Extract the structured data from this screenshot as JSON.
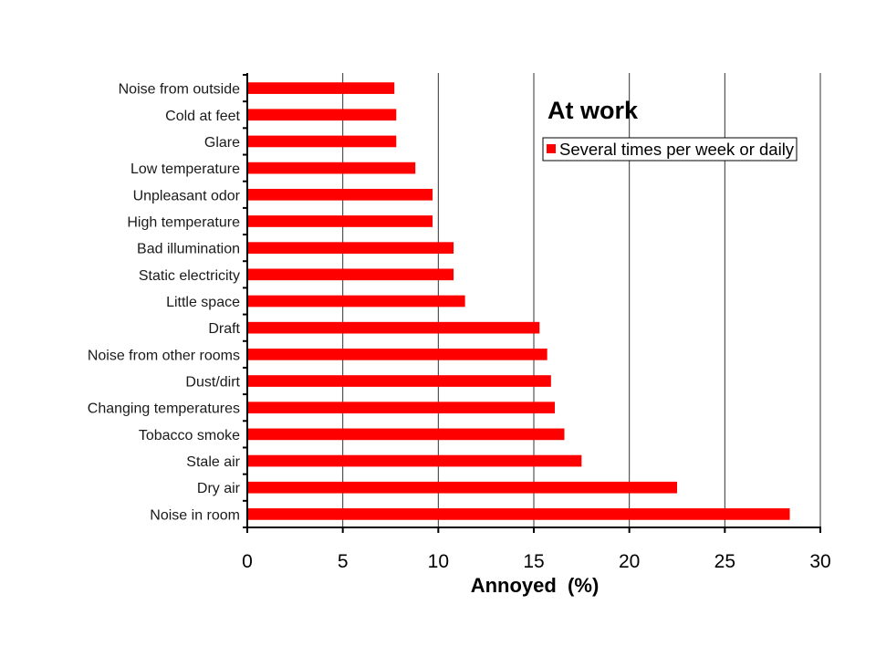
{
  "chart_data": {
    "type": "bar",
    "orientation": "horizontal",
    "title": "At work",
    "xlabel": "Annoyed  (%)",
    "xlim": [
      0,
      30
    ],
    "xticks": [
      0,
      5,
      10,
      15,
      20,
      25,
      30
    ],
    "grid": true,
    "legend_position": "top-right",
    "categories": [
      "Noise from outside",
      "Cold at feet",
      "Glare",
      "Low temperature",
      "Unpleasant odor",
      "High temperature",
      "Bad illumination",
      "Static electricity",
      "Little space",
      "Draft",
      "Noise from other rooms",
      "Dust/dirt",
      "Changing temperatures",
      "Tobacco smoke",
      "Stale air",
      "Dry air",
      "Noise in room"
    ],
    "series": [
      {
        "name": "Several times per week or daily",
        "color": "#FF0000",
        "values": [
          7.7,
          7.8,
          7.8,
          8.8,
          9.7,
          9.7,
          10.8,
          10.8,
          11.4,
          15.3,
          15.7,
          15.9,
          16.1,
          16.6,
          17.5,
          22.5,
          28.4
        ]
      }
    ]
  }
}
